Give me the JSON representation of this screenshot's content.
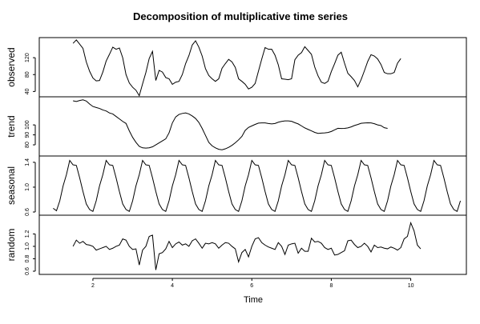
{
  "chart_data": {
    "type": "line",
    "title": "Decomposition of multiplicative time series",
    "xlabel": "Time",
    "xlim": [
      0.65,
      11.4
    ],
    "x_ticks": [
      2,
      4,
      6,
      8,
      10
    ],
    "x_tick_labels": [
      "2",
      "4",
      "6",
      "8",
      "10"
    ],
    "frequency": 12,
    "grid": false,
    "line_color": "#000000",
    "panels": [
      {
        "name": "observed",
        "ylabel": "observed",
        "ylim": [
          35,
          160
        ],
        "y_ticks": [
          40,
          80,
          120
        ],
        "y_tick_labels": [
          "40",
          "80",
          "120"
        ],
        "start": 1.5,
        "values": [
          154,
          162,
          152,
          142,
          110,
          88,
          72,
          65,
          66,
          86,
          112,
          128,
          145,
          140,
          143,
          120,
          80,
          60,
          50,
          43,
          30,
          58,
          85,
          118,
          135,
          66,
          90,
          86,
          73,
          70,
          57,
          62,
          64,
          80,
          106,
          125,
          150,
          160,
          145,
          124,
          94,
          78,
          70,
          64,
          70,
          95,
          106,
          116,
          110,
          97,
          70,
          64,
          57,
          46,
          50,
          59,
          88,
          117,
          144,
          140,
          140,
          126,
          103,
          70,
          69,
          68,
          70,
          115,
          126,
          132,
          146,
          137,
          128,
          98,
          77,
          62,
          59,
          64,
          87,
          106,
          126,
          133,
          107,
          83,
          75,
          66,
          51,
          68,
          89,
          111,
          127,
          124,
          117,
          104,
          85,
          82,
          82,
          85,
          107,
          118
        ]
      },
      {
        "name": "trend",
        "ylabel": "trend",
        "ylim": [
          72,
          125
        ],
        "y_ticks": [
          80,
          90,
          100
        ],
        "y_tick_labels": [
          "80",
          "90",
          "100"
        ],
        "start": 1.5,
        "values": [
          124.2,
          123.5,
          124.5,
          125.2,
          124,
          121,
          118.5,
          117.5,
          116.5,
          115,
          114,
          112,
          111,
          108.5,
          106,
          103.5,
          101.5,
          94,
          87.5,
          82.5,
          78.5,
          77,
          76.7,
          77,
          78,
          80,
          82,
          84,
          86,
          92,
          102,
          108,
          110.5,
          111.5,
          112,
          111,
          109,
          106.5,
          102.5,
          96.5,
          89.5,
          82.5,
          79,
          77,
          75.5,
          75,
          76,
          77.5,
          79.5,
          82,
          85,
          88.5,
          94.5,
          97.5,
          99,
          100.5,
          101.8,
          102,
          102,
          101.4,
          101,
          101.4,
          102.7,
          103.5,
          104,
          104,
          103.6,
          102.2,
          101,
          99,
          97,
          95.5,
          94,
          92.5,
          91.5,
          91.8,
          92,
          92.4,
          93.4,
          95,
          96.6,
          96.4,
          96.5,
          97,
          98,
          99.4,
          100.4,
          101.6,
          101.9,
          102.1,
          102,
          101.2,
          100,
          99.3,
          97.2,
          96.5
        ]
      },
      {
        "name": "seasonal",
        "ylabel": "seasonal",
        "ylim": [
          0.6,
          1.45
        ],
        "y_ticks": [
          0.6,
          1.0,
          1.4
        ],
        "y_tick_labels": [
          "0.6",
          "1.0",
          "1.4"
        ],
        "start": 1.0,
        "values": [
          0.66,
          0.62,
          0.78,
          1.02,
          1.2,
          1.43,
          1.36,
          1.35,
          1.15,
          0.93,
          0.73,
          0.64,
          0.61,
          0.78,
          1.02,
          1.2,
          1.43,
          1.36,
          1.35,
          1.15,
          0.93,
          0.73,
          0.64,
          0.61,
          0.78,
          1.02,
          1.2,
          1.43,
          1.36,
          1.35,
          1.15,
          0.93,
          0.73,
          0.64,
          0.61,
          0.78,
          1.02,
          1.2,
          1.43,
          1.36,
          1.35,
          1.15,
          0.93,
          0.73,
          0.64,
          0.61,
          0.78,
          1.02,
          1.2,
          1.43,
          1.36,
          1.35,
          1.15,
          0.93,
          0.73,
          0.64,
          0.61,
          0.78,
          1.02,
          1.2,
          1.43,
          1.36,
          1.35,
          1.15,
          0.93,
          0.73,
          0.64,
          0.61,
          0.78,
          1.02,
          1.2,
          1.43,
          1.36,
          1.35,
          1.15,
          0.93,
          0.73,
          0.64,
          0.61,
          0.78,
          1.02,
          1.2,
          1.43,
          1.36,
          1.35,
          1.15,
          0.93,
          0.73,
          0.64,
          0.61,
          0.78,
          1.02,
          1.2,
          1.43,
          1.36,
          1.35,
          1.15,
          0.93,
          0.73,
          0.64,
          0.61,
          0.78,
          1.02,
          1.2,
          1.43,
          1.36,
          1.35,
          1.15,
          0.93,
          0.73,
          0.64,
          0.61,
          0.78,
          1.02,
          1.2,
          1.43,
          1.36,
          1.35,
          1.15,
          0.93,
          0.73,
          0.64,
          0.61,
          0.78
        ]
      },
      {
        "name": "random",
        "ylabel": "random",
        "ylim": [
          0.6,
          1.45
        ],
        "y_ticks": [
          0.6,
          0.8,
          1.0,
          1.2
        ],
        "y_tick_labels": [
          "0.6",
          "0.8",
          "1.0",
          "1.2"
        ],
        "start": 1.5,
        "values": [
          1.0,
          1.1,
          1.05,
          1.08,
          1.03,
          1.02,
          1.0,
          0.94,
          0.96,
          0.98,
          1.0,
          0.95,
          0.97,
          1.0,
          1.02,
          1.12,
          1.1,
          1.0,
          0.95,
          0.96,
          0.7,
          0.94,
          1.0,
          1.16,
          1.18,
          0.62,
          0.88,
          0.9,
          0.96,
          1.08,
          0.98,
          1.04,
          1.07,
          1.02,
          1.04,
          1.0,
          1.09,
          1.12,
          1.05,
          0.97,
          1.05,
          1.04,
          1.06,
          1.04,
          0.97,
          1.02,
          1.06,
          1.05,
          1.0,
          0.96,
          0.75,
          0.9,
          0.95,
          0.83,
          1.0,
          1.12,
          1.14,
          1.06,
          1.02,
          0.99,
          0.97,
          0.95,
          1.06,
          1.0,
          0.87,
          1.02,
          1.04,
          1.05,
          0.89,
          0.97,
          0.92,
          0.92,
          1.13,
          1.07,
          1.08,
          1.05,
          0.98,
          0.95,
          0.97,
          0.86,
          0.87,
          0.9,
          0.93,
          1.09,
          1.1,
          1.03,
          0.98,
          1.0,
          1.05,
          1.0,
          0.91,
          1.02,
          0.98,
          0.99,
          0.97,
          0.96,
          0.99,
          0.97,
          0.94,
          0.98,
          1.12,
          1.16,
          1.38,
          1.25,
          1.02,
          0.96
        ]
      }
    ]
  }
}
